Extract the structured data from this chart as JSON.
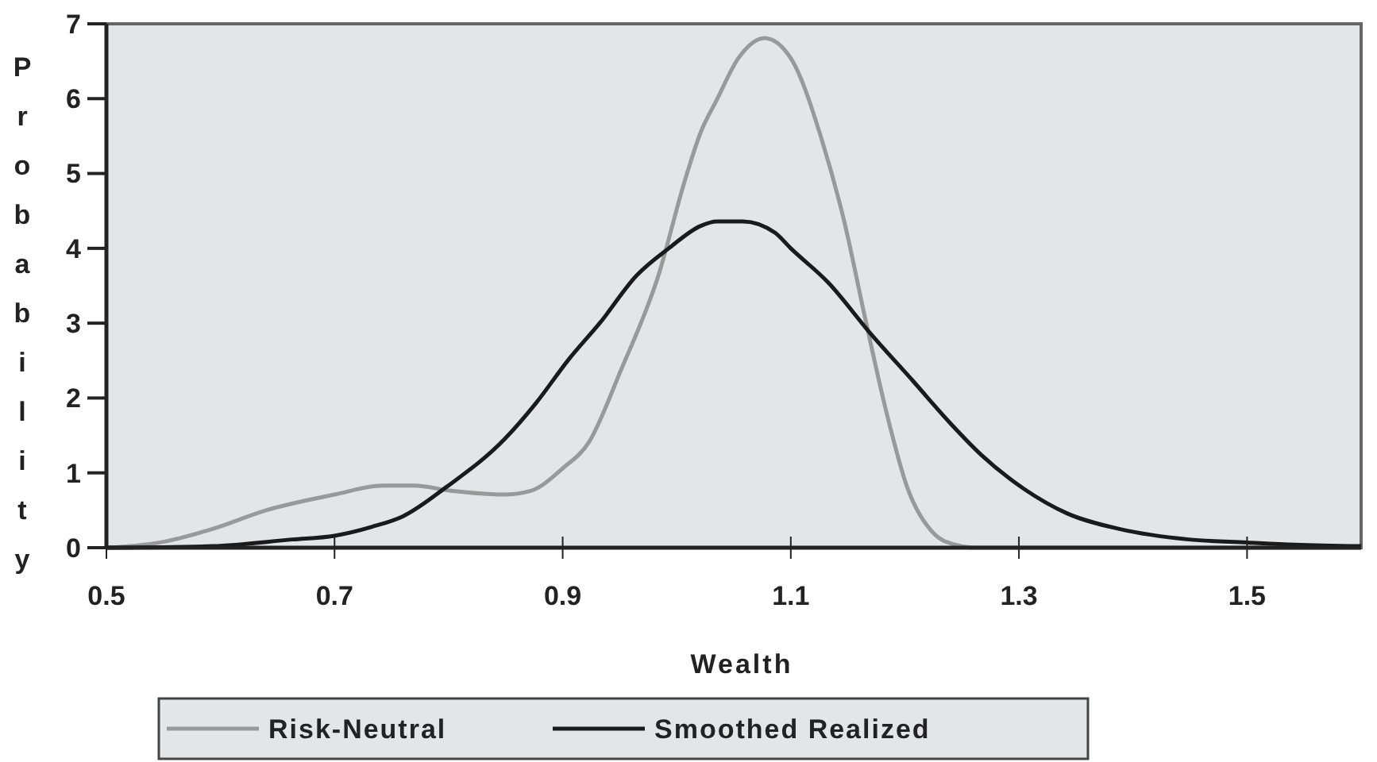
{
  "chart_data": {
    "type": "line",
    "xlabel": "Wealth",
    "ylabel": "Probability",
    "xlim": [
      0.5,
      1.6
    ],
    "xticks": [
      0.5,
      0.7,
      0.9,
      1.1,
      1.3,
      1.5
    ],
    "ylim": [
      0,
      7
    ],
    "yticks": [
      0,
      1,
      2,
      3,
      4,
      5,
      6,
      7
    ],
    "grid": false,
    "legend": "bottom",
    "marker": "none",
    "line_style": "solid",
    "series": [
      {
        "name": "Risk-Neutral",
        "color": "#999999",
        "x": [
          0.5,
          0.547,
          0.593,
          0.64,
          0.7,
          0.742,
          0.77,
          0.802,
          0.849,
          0.872,
          0.9,
          0.923,
          0.951,
          0.984,
          1.007,
          1.021,
          1.035,
          1.054,
          1.077,
          1.1,
          1.128,
          1.147,
          1.165,
          1.184,
          1.202,
          1.226,
          1.244,
          1.26,
          1.6
        ],
        "values": [
          0,
          0.07,
          0.25,
          0.5,
          0.71,
          0.83,
          0.83,
          0.76,
          0.71,
          0.76,
          1.06,
          1.41,
          2.37,
          3.64,
          4.9,
          5.55,
          5.98,
          6.54,
          6.81,
          6.54,
          5.41,
          4.35,
          3.08,
          1.8,
          0.81,
          0.18,
          0.04,
          0,
          0
        ]
      },
      {
        "name": "Smoothed Realized",
        "color": "#1a1a1a",
        "x": [
          0.5,
          0.593,
          0.663,
          0.7,
          0.733,
          0.76,
          0.798,
          0.849,
          0.877,
          0.905,
          0.933,
          0.965,
          0.993,
          1.021,
          1.035,
          1.058,
          1.086,
          1.1,
          1.133,
          1.17,
          1.207,
          1.24,
          1.267,
          1.305,
          1.342,
          1.388,
          1.449,
          1.5,
          1.542,
          1.6
        ],
        "values": [
          0,
          0.02,
          0.11,
          0.16,
          0.28,
          0.42,
          0.81,
          1.45,
          1.94,
          2.51,
          3.01,
          3.64,
          4.0,
          4.3,
          4.36,
          4.36,
          4.21,
          4.0,
          3.54,
          2.86,
          2.23,
          1.66,
          1.24,
          0.78,
          0.46,
          0.25,
          0.11,
          0.07,
          0.04,
          0.02
        ]
      }
    ]
  }
}
